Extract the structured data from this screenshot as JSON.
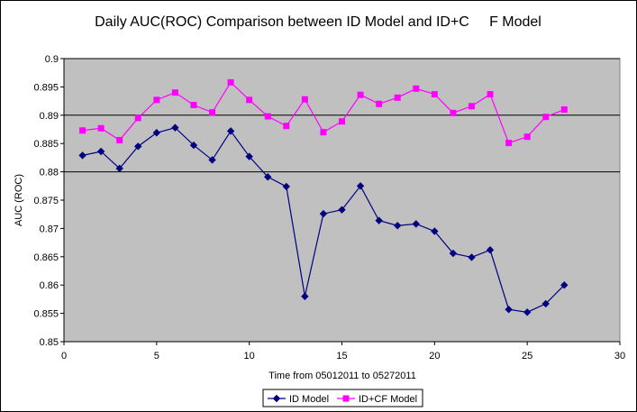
{
  "chart_data": {
    "type": "line",
    "title": "Daily AUC(ROC) Comparison between ID Model and ID+C     F Model",
    "xlabel": "Time from 05012011 to 05272011",
    "ylabel": "AUC (ROC)",
    "xlim": [
      0,
      30
    ],
    "ylim": [
      0.85,
      0.9
    ],
    "xticks": [
      "0",
      "5",
      "10",
      "15",
      "20",
      "25",
      "30"
    ],
    "yticks": [
      "0.85",
      "0.855",
      "0.86",
      "0.865",
      "0.87",
      "0.875",
      "0.88",
      "0.885",
      "0.89",
      "0.895",
      "0.9"
    ],
    "grid_y": [
      0.88,
      0.89,
      0.9
    ],
    "plot_background": "#C0C0C0",
    "legend_position": "bottom",
    "x": [
      1,
      2,
      3,
      4,
      5,
      6,
      7,
      8,
      9,
      10,
      11,
      12,
      13,
      14,
      15,
      16,
      17,
      18,
      19,
      20,
      21,
      22,
      23,
      24,
      25,
      26,
      27
    ],
    "series": [
      {
        "name": "ID Model",
        "color": "#000080",
        "marker": "diamond",
        "values": [
          0.8829,
          0.8836,
          0.8806,
          0.8845,
          0.8869,
          0.8878,
          0.8847,
          0.8821,
          0.8872,
          0.8827,
          0.8791,
          0.8774,
          0.858,
          0.8726,
          0.8733,
          0.8775,
          0.8714,
          0.8705,
          0.8708,
          0.8695,
          0.8656,
          0.8649,
          0.8662,
          0.8557,
          0.8552,
          0.8567,
          0.86
        ]
      },
      {
        "name": "ID+CF Model",
        "color": "#FF00FF",
        "marker": "square",
        "values": [
          0.8873,
          0.8877,
          0.8856,
          0.8895,
          0.8927,
          0.894,
          0.8918,
          0.8905,
          0.8958,
          0.8927,
          0.8898,
          0.8881,
          0.8928,
          0.887,
          0.8889,
          0.8936,
          0.892,
          0.8931,
          0.8947,
          0.8937,
          0.8904,
          0.8916,
          0.8937,
          0.8851,
          0.8862,
          0.8897,
          0.891
        ]
      }
    ]
  }
}
